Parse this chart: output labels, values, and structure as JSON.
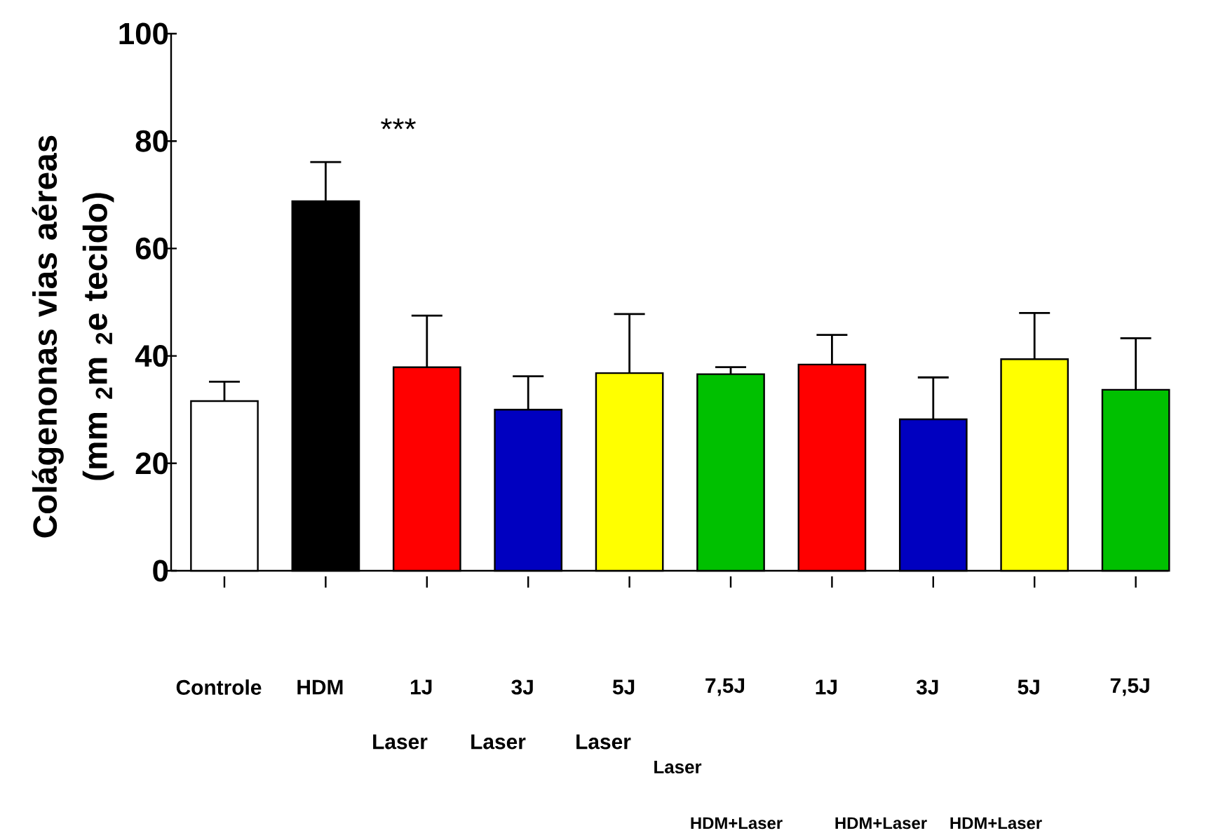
{
  "chart_data": {
    "type": "bar",
    "ylabel": "Colágenonas vias aéreas (mm $_{2}$m $_{2}$e tecido)",
    "categories": [
      "Controle",
      "HDM",
      "1J",
      "3J",
      "5J",
      "7,5J",
      "1J",
      "3J",
      "5J",
      "7,5J"
    ],
    "values": [
      31.6,
      68.8,
      37.9,
      30.0,
      36.8,
      36.6,
      38.4,
      28.2,
      39.4,
      33.7
    ],
    "errors": [
      [
        31.6,
        35.2
      ],
      [
        68.8,
        76.1
      ],
      [
        37.9,
        47.5
      ],
      [
        30.0,
        36.2
      ],
      [
        36.8,
        47.8
      ],
      [
        36.6,
        37.9
      ],
      [
        38.4,
        43.9
      ],
      [
        28.2,
        36.0
      ],
      [
        39.4,
        48.0
      ],
      [
        33.7,
        43.3
      ]
    ],
    "colors": [
      "#ffffff",
      "#000000",
      "#ff0000",
      "#0000c0",
      "#ffff00",
      "#00c000",
      "#ff0000",
      "#0000c0",
      "#ffff00",
      "#00c000"
    ],
    "ylim": [
      0,
      100
    ],
    "yticks": [
      0,
      20,
      40,
      60,
      80,
      100
    ],
    "annotations": [
      "***",
      "Laser",
      "Laser",
      "Laser",
      "Laser",
      "HDM+Laser",
      "HDM+Laser",
      "HDM+Laser"
    ]
  }
}
